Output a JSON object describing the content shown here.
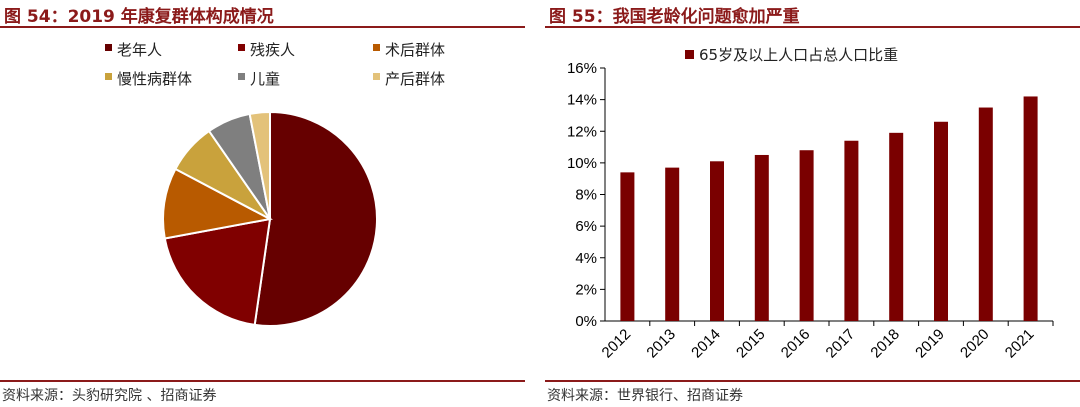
{
  "left": {
    "title": "图 54：2019 年康复群体构成情况",
    "source": "资料来源：头豹研究院 、招商证券"
  },
  "right": {
    "title": "图 55：我国老龄化问题愈加严重",
    "source": "资料来源：世界银行、招商证券"
  },
  "colors": {
    "accent": "#8b1a1a",
    "bar": "#7a0000"
  },
  "chart_data": [
    {
      "type": "pie",
      "title": "",
      "legend_position": "top",
      "slices": [
        {
          "name": "老年人",
          "value": 51.5,
          "color": "#660000"
        },
        {
          "name": "残疾人",
          "value": 19.5,
          "color": "#800000"
        },
        {
          "name": "术后群体",
          "value": 10.5,
          "color": "#b85a00"
        },
        {
          "name": "慢性病群体",
          "value": 7.5,
          "color": "#c9a23c"
        },
        {
          "name": "儿童",
          "value": 6.5,
          "color": "#7f7f7f"
        },
        {
          "name": "产后群体",
          "value": 3.0,
          "color": "#e3c27a"
        }
      ]
    },
    {
      "type": "bar",
      "title": "",
      "xlabel": "",
      "ylabel": "",
      "categories": [
        "2012",
        "2013",
        "2014",
        "2015",
        "2016",
        "2017",
        "2018",
        "2019",
        "2020",
        "2021"
      ],
      "series": [
        {
          "name": "65岁及以上人口占总人口比重",
          "values": [
            9.4,
            9.7,
            10.1,
            10.5,
            10.8,
            11.4,
            11.9,
            12.6,
            13.5,
            14.2
          ]
        }
      ],
      "ylim": [
        0,
        16
      ],
      "yticks": [
        "0%",
        "2%",
        "4%",
        "6%",
        "8%",
        "10%",
        "12%",
        "14%",
        "16%"
      ],
      "grid": false,
      "legend_position": "top-left"
    }
  ]
}
